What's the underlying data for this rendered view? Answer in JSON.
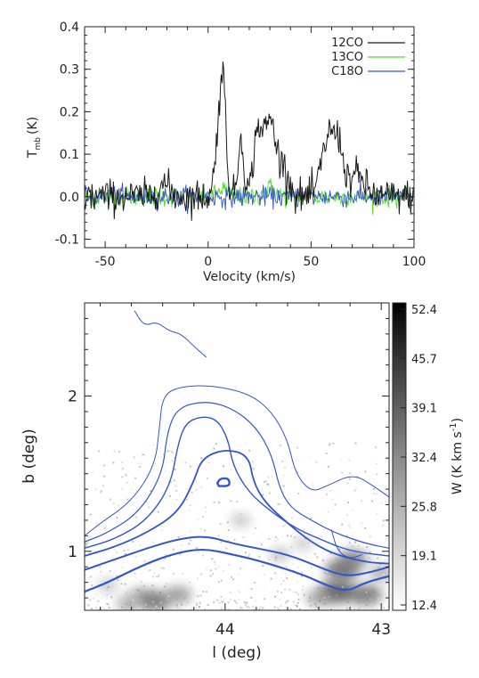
{
  "chart_data": [
    {
      "type": "line",
      "title": "",
      "xlabel": "Velocity (km/s)",
      "ylabel": "T",
      "ylabel_sub": "mb",
      "ylabel_unit": "(K)",
      "xlim": [
        -60,
        100
      ],
      "ylim": [
        -0.12,
        0.4
      ],
      "xticks": [
        -50,
        0,
        50,
        100
      ],
      "yticks": [
        -0.1,
        0.0,
        0.1,
        0.2,
        0.3,
        0.4
      ],
      "ytick_labels": [
        "-0.1",
        "0.0",
        "0.1",
        "0.2",
        "0.3",
        "0.4"
      ],
      "legend_position": "top-right",
      "series": [
        {
          "name": "12CO",
          "color": "#1a1a1a",
          "noise": 0.02,
          "baseline": 0.0,
          "components": [
            {
              "center": 7,
              "amp": 0.29,
              "width": 1.6
            },
            {
              "center": 4,
              "amp": 0.08,
              "width": 1.3
            },
            {
              "center": 16,
              "amp": 0.14,
              "width": 1.4
            },
            {
              "center": 24,
              "amp": 0.14,
              "width": 2.0
            },
            {
              "center": 30,
              "amp": 0.18,
              "width": 3.0
            },
            {
              "center": 37,
              "amp": 0.06,
              "width": 2.5
            },
            {
              "center": 59,
              "amp": 0.15,
              "width": 3.5
            },
            {
              "center": 64,
              "amp": 0.07,
              "width": 2.0
            },
            {
              "center": 72,
              "amp": 0.05,
              "width": 4.0
            },
            {
              "center": -22,
              "amp": 0.03,
              "width": 3.0
            }
          ]
        },
        {
          "name": "13CO",
          "color": "#55dd22",
          "noise": 0.012,
          "baseline": 0.0,
          "components": [
            {
              "center": 7,
              "amp": 0.02,
              "width": 2.0
            },
            {
              "center": 30,
              "amp": 0.02,
              "width": 3.0
            }
          ]
        },
        {
          "name": "C18O",
          "color": "#3355cc",
          "noise": 0.012,
          "baseline": 0.0,
          "components": []
        }
      ]
    },
    {
      "type": "heatmap",
      "title": "",
      "xlabel": "l (deg)",
      "ylabel": "b (deg)",
      "xlim": [
        44.9,
        42.95
      ],
      "ylim": [
        0.62,
        2.6
      ],
      "xticks": [
        44,
        43
      ],
      "yticks": [
        1,
        2
      ],
      "colorbar": {
        "label": "W (K km s",
        "label_sup": "-1",
        "label_end": ")",
        "ticks": [
          "52.4",
          "45.7",
          "39.1",
          "32.4",
          "25.8",
          "19.1",
          "12.4"
        ],
        "range": [
          12.4,
          52.4
        ]
      },
      "contour_color": "#3355cc",
      "contours": [
        {
          "level": 1,
          "width": 1.0,
          "points": [
            [
              44.58,
              2.55
            ],
            [
              44.52,
              2.45
            ],
            [
              44.44,
              2.48
            ],
            [
              44.36,
              2.42
            ],
            [
              44.28,
              2.4
            ],
            [
              44.2,
              2.32
            ],
            [
              44.12,
              2.25
            ]
          ]
        },
        {
          "level": 2,
          "width": 1.0,
          "points": [
            [
              44.9,
              1.1
            ],
            [
              44.8,
              1.18
            ],
            [
              44.6,
              1.32
            ],
            [
              44.45,
              1.55
            ],
            [
              44.42,
              1.8
            ],
            [
              44.4,
              2.0
            ],
            [
              44.3,
              2.06
            ],
            [
              44.1,
              2.07
            ],
            [
              43.85,
              2.02
            ],
            [
              43.7,
              1.9
            ],
            [
              43.6,
              1.72
            ],
            [
              43.55,
              1.5
            ],
            [
              43.45,
              1.38
            ],
            [
              43.35,
              1.42
            ],
            [
              43.18,
              1.5
            ],
            [
              43.05,
              1.42
            ],
            [
              42.95,
              1.35
            ]
          ]
        },
        {
          "level": 3,
          "width": 1.2,
          "points": [
            [
              44.9,
              1.06
            ],
            [
              44.75,
              1.12
            ],
            [
              44.55,
              1.25
            ],
            [
              44.4,
              1.5
            ],
            [
              44.37,
              1.78
            ],
            [
              44.3,
              1.93
            ],
            [
              44.12,
              1.97
            ],
            [
              43.95,
              1.92
            ],
            [
              43.8,
              1.8
            ],
            [
              43.7,
              1.62
            ],
            [
              43.65,
              1.4
            ],
            [
              43.58,
              1.28
            ],
            [
              43.45,
              1.2
            ],
            [
              43.3,
              1.12
            ],
            [
              43.1,
              1.05
            ],
            [
              42.95,
              1.02
            ]
          ]
        },
        {
          "level": 4,
          "width": 1.4,
          "points": [
            [
              44.9,
              1.02
            ],
            [
              44.7,
              1.08
            ],
            [
              44.5,
              1.2
            ],
            [
              44.35,
              1.42
            ],
            [
              44.3,
              1.7
            ],
            [
              44.25,
              1.83
            ],
            [
              44.15,
              1.87
            ],
            [
              44.05,
              1.85
            ],
            [
              43.98,
              1.72
            ],
            [
              43.95,
              1.55
            ],
            [
              43.85,
              1.38
            ],
            [
              43.7,
              1.25
            ],
            [
              43.55,
              1.15
            ],
            [
              43.4,
              1.08
            ],
            [
              43.2,
              1.0
            ],
            [
              42.95,
              0.97
            ]
          ]
        },
        {
          "level": 5,
          "width": 1.8,
          "points": [
            [
              44.9,
              0.97
            ],
            [
              44.7,
              1.03
            ],
            [
              44.5,
              1.12
            ],
            [
              44.3,
              1.25
            ],
            [
              44.2,
              1.45
            ],
            [
              44.15,
              1.6
            ],
            [
              44.0,
              1.66
            ],
            [
              43.85,
              1.62
            ],
            [
              43.82,
              1.45
            ],
            [
              43.75,
              1.32
            ],
            [
              43.6,
              1.18
            ],
            [
              43.45,
              1.06
            ],
            [
              43.3,
              0.98
            ],
            [
              43.1,
              0.93
            ],
            [
              42.95,
              0.92
            ]
          ]
        },
        {
          "level": 6,
          "width": 2.0,
          "points": [
            [
              44.9,
              0.88
            ],
            [
              44.7,
              0.95
            ],
            [
              44.5,
              1.02
            ],
            [
              44.3,
              1.08
            ],
            [
              44.12,
              1.1
            ],
            [
              43.95,
              1.05
            ],
            [
              43.8,
              1.02
            ],
            [
              43.6,
              0.98
            ],
            [
              43.4,
              0.9
            ],
            [
              43.3,
              0.86
            ],
            [
              43.2,
              0.84
            ],
            [
              43.05,
              0.87
            ],
            [
              42.95,
              0.9
            ]
          ]
        },
        {
          "level": 7,
          "width": 2.2,
          "points": [
            [
              44.9,
              0.74
            ],
            [
              44.75,
              0.8
            ],
            [
              44.55,
              0.9
            ],
            [
              44.35,
              0.98
            ],
            [
              44.15,
              1.02
            ],
            [
              43.95,
              0.98
            ],
            [
              43.75,
              0.93
            ],
            [
              43.5,
              0.85
            ],
            [
              43.35,
              0.78
            ],
            [
              43.22,
              0.74
            ],
            [
              43.1,
              0.8
            ],
            [
              42.95,
              0.84
            ]
          ]
        },
        {
          "level": 8,
          "width": 2.4,
          "closed": true,
          "points": [
            [
              44.05,
              1.44
            ],
            [
              44.03,
              1.47
            ],
            [
              43.98,
              1.47
            ],
            [
              43.97,
              1.44
            ],
            [
              43.98,
              1.42
            ],
            [
              44.04,
              1.42
            ]
          ]
        },
        {
          "level": 9,
          "width": 1.0,
          "points": [
            [
              43.32,
              1.14
            ],
            [
              43.28,
              1.0
            ],
            [
              43.2,
              0.95
            ],
            [
              43.12,
              0.98
            ]
          ]
        }
      ],
      "emission_blobs": [
        {
          "l": 44.55,
          "b": 0.72,
          "w": 20
        },
        {
          "l": 44.45,
          "b": 0.68,
          "w": 34
        },
        {
          "l": 44.3,
          "b": 0.72,
          "w": 26
        },
        {
          "l": 44.62,
          "b": 0.66,
          "w": 22
        },
        {
          "l": 44.75,
          "b": 0.78,
          "w": 16
        },
        {
          "l": 43.25,
          "b": 0.88,
          "w": 36
        },
        {
          "l": 43.18,
          "b": 0.95,
          "w": 30
        },
        {
          "l": 43.28,
          "b": 0.74,
          "w": 40
        },
        {
          "l": 43.1,
          "b": 0.72,
          "w": 34
        },
        {
          "l": 43.4,
          "b": 0.7,
          "w": 24
        },
        {
          "l": 43.0,
          "b": 0.86,
          "w": 22
        },
        {
          "l": 43.9,
          "b": 1.2,
          "w": 16
        },
        {
          "l": 43.65,
          "b": 0.98,
          "w": 17
        },
        {
          "l": 43.5,
          "b": 1.05,
          "w": 15
        }
      ]
    }
  ]
}
